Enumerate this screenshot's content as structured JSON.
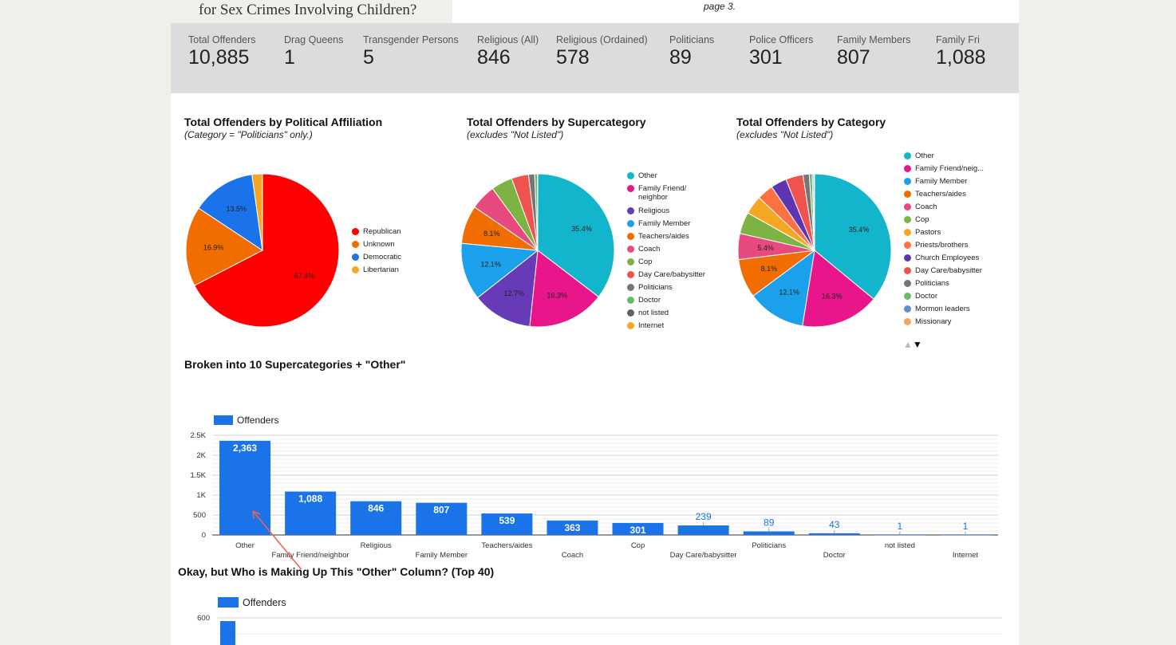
{
  "header": {
    "title": "for Sex Crimes Involving Children?",
    "note": "page 3."
  },
  "stats": [
    {
      "label": "Total Offenders",
      "value": "10,885"
    },
    {
      "label": "Drag Queens",
      "value": "1"
    },
    {
      "label": "Transgender Persons",
      "value": "5"
    },
    {
      "label": "Religious (All)",
      "value": "846"
    },
    {
      "label": "Religious (Ordained)",
      "value": "578"
    },
    {
      "label": "Politicians",
      "value": "89"
    },
    {
      "label": "Police Officers",
      "value": "301"
    },
    {
      "label": "Family Members",
      "value": "807"
    },
    {
      "label": "Family Fri",
      "value": "1,088"
    }
  ],
  "colors": {
    "bar": "#1a73e8",
    "annotation_arrow": "#e8655a"
  },
  "pager": {
    "up": "▲",
    "down": "▼"
  },
  "chart_data": [
    {
      "type": "pie",
      "title": "Total Offenders by Political Affiliation",
      "subtitle": "(Category = \"Politicians\" only.)",
      "labels": [
        "Republican",
        "Unknown",
        "Democratic",
        "Libertarian"
      ],
      "values": [
        67.4,
        16.9,
        13.5,
        2.2
      ],
      "slice_labels": [
        "67.4%",
        "16.9%",
        "13.5%",
        ""
      ],
      "colors": [
        "#ff0000",
        "#f26d00",
        "#1a73e8",
        "#f5a623"
      ],
      "legend_labels": [
        "Republican",
        "Unknown",
        "Democratic",
        "Libertarian"
      ],
      "legend_colors": [
        "#ff0000",
        "#f26d00",
        "#1a73e8",
        "#f5a623"
      ],
      "legend_position": "right"
    },
    {
      "type": "pie",
      "title": "Total Offenders by Supercategory",
      "subtitle": "(excludes \"Not Listed\")",
      "labels": [
        "Other",
        "Family Friend/ neighbor",
        "Religious",
        "Family Member",
        "Teachers/aides",
        "Coach",
        "Cop",
        "Day Care/babysitter",
        "Politicians",
        "Doctor",
        "not listed",
        "Internet"
      ],
      "values": [
        35.4,
        16.3,
        12.7,
        12.1,
        8.1,
        5.4,
        4.5,
        3.6,
        1.3,
        0.6,
        0.02,
        0.02
      ],
      "slice_labels": [
        "35.4%",
        "16.3%",
        "12.7%",
        "12.1%",
        "8.1%",
        "",
        "",
        "",
        "",
        "",
        "",
        ""
      ],
      "colors": [
        "#12b5cb",
        "#e8168a",
        "#673ab7",
        "#1ba1ec",
        "#f26d00",
        "#e84a7f",
        "#7cb342",
        "#ef5350",
        "#757575",
        "#66bb6a",
        "#616161",
        "#f5a623"
      ],
      "legend_labels": [
        "Other",
        "Family Friend/ neighbor",
        "Religious",
        "Family Member",
        "Teachers/aides",
        "Coach",
        "Cop",
        "Day Care/babysitter",
        "Politicians",
        "Doctor",
        "not listed",
        "Internet"
      ],
      "legend_colors": [
        "#12b5cb",
        "#e8168a",
        "#673ab7",
        "#1ba1ec",
        "#f26d00",
        "#e84a7f",
        "#7cb342",
        "#ef5350",
        "#757575",
        "#66bb6a",
        "#616161",
        "#f5a623"
      ],
      "legend_position": "right"
    },
    {
      "type": "pie",
      "title": "Total Offenders by Category",
      "subtitle": "(excludes \"Not Listed\")",
      "labels": [
        "Other",
        "Family Friend/neig...",
        "Family Member",
        "Teachers/aides",
        "Coach",
        "Cop",
        "Pastors",
        "Priests/brothers",
        "Church Employees",
        "Day Care/babysitter",
        "Politicians",
        "Doctor",
        "Mormon leaders",
        "Missionary"
      ],
      "values": [
        35.4,
        16.3,
        12.1,
        8.1,
        5.4,
        4.5,
        3.9,
        3.4,
        3.3,
        3.6,
        1.3,
        0.6,
        0.3,
        0.2
      ],
      "slice_labels": [
        "35.4%",
        "16.3%",
        "12.1%",
        "8.1%",
        "5.4%",
        "",
        "",
        "",
        "",
        "",
        "",
        "",
        "",
        ""
      ],
      "colors": [
        "#12b5cb",
        "#e8168a",
        "#1ba1ec",
        "#f26d00",
        "#e84a7f",
        "#7cb342",
        "#f5a623",
        "#ff7043",
        "#5e35b1",
        "#ef5350",
        "#757575",
        "#66bb6a",
        "#5c8fd6",
        "#f4a460"
      ],
      "legend_labels": [
        "Other",
        "Family Friend/neig...",
        "Family Member",
        "Teachers/aides",
        "Coach",
        "Cop",
        "Pastors",
        "Priests/brothers",
        "Church Employees",
        "Day Care/babysitter",
        "Politicians",
        "Doctor",
        "Mormon leaders",
        "Missionary"
      ],
      "legend_colors": [
        "#12b5cb",
        "#e8168a",
        "#1ba1ec",
        "#f26d00",
        "#e84a7f",
        "#7cb342",
        "#f5a623",
        "#ff7043",
        "#5e35b1",
        "#ef5350",
        "#757575",
        "#66bb6a",
        "#5c8fd6",
        "#f4a460"
      ],
      "legend_position": "right"
    },
    {
      "type": "bar",
      "title": "Broken into 10 Supercategories + \"Other\"",
      "series_name": "Offenders",
      "categories": [
        "Other",
        "Family Friend/neighbor",
        "Religious",
        "Family Member",
        "Teachers/aides",
        "Coach",
        "Cop",
        "Day Care/babysitter",
        "Politicians",
        "Doctor",
        "not listed",
        "Internet"
      ],
      "values": [
        2363,
        1088,
        846,
        807,
        539,
        363,
        301,
        239,
        89,
        43,
        1,
        1
      ],
      "value_labels": [
        "2,363",
        "1,088",
        "846",
        "807",
        "539",
        "363",
        "301",
        "239",
        "89",
        "43",
        "1",
        "1"
      ],
      "yticks": [
        "0",
        "500",
        "1K",
        "1.5K",
        "2K",
        "2.5K"
      ],
      "ylim": [
        0,
        2500
      ],
      "grid": true,
      "legend_position": "top-left"
    },
    {
      "type": "bar",
      "title": "Okay, but Who is Making Up This \"Other\" Column? (Top 40)",
      "series_name": "Offenders",
      "yticks": [
        "600"
      ],
      "legend_position": "top-left"
    }
  ]
}
